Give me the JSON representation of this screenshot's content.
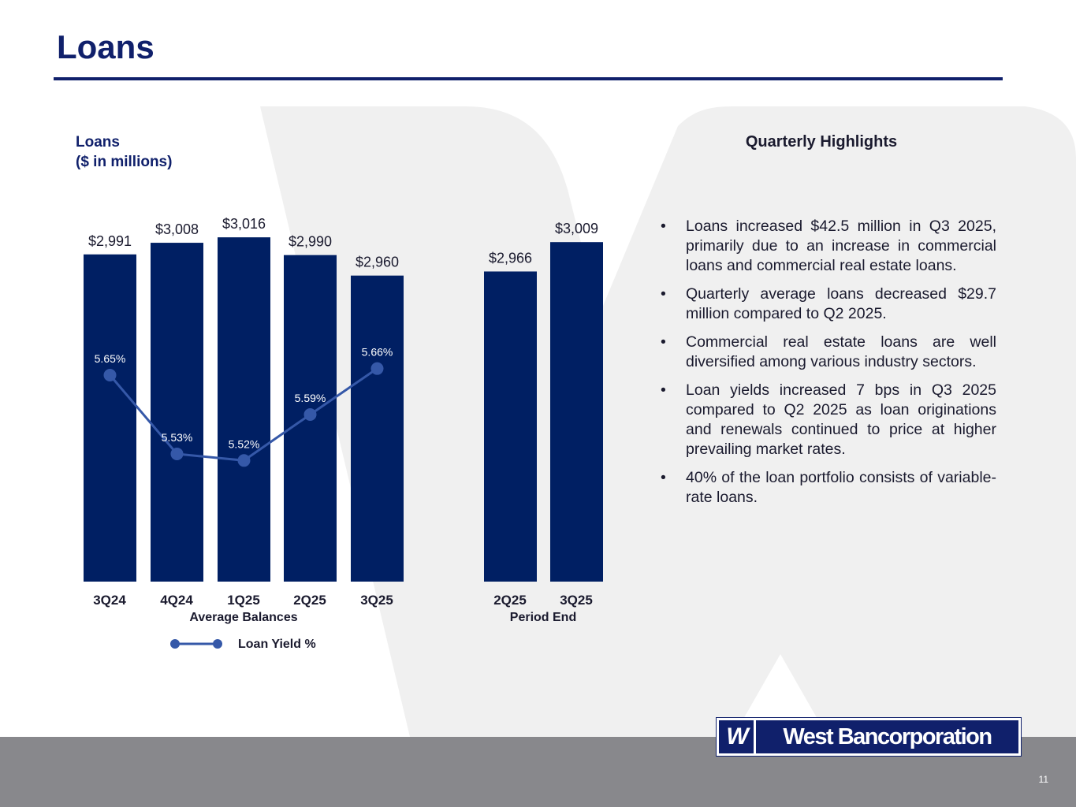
{
  "slide": {
    "title": "Loans",
    "page_number": "11"
  },
  "chart_data": {
    "type": "bar",
    "title_lines": [
      "Loans",
      "($ in millions)"
    ],
    "unit": "$ in millions",
    "groups": [
      {
        "name": "Average Balances",
        "categories": [
          "3Q24",
          "4Q24",
          "1Q25",
          "2Q25",
          "3Q25"
        ],
        "values": [
          2991,
          3008,
          3016,
          2990,
          2960
        ],
        "value_labels": [
          "$2,991",
          "$3,008",
          "$3,016",
          "$2,990",
          "$2,960"
        ],
        "line_series": {
          "name": "Loan Yield %",
          "values": [
            5.65,
            5.53,
            5.52,
            5.59,
            5.66
          ],
          "labels": [
            "5.65%",
            "5.53%",
            "5.52%",
            "5.59%",
            "5.66%"
          ]
        }
      },
      {
        "name": "Period End",
        "categories": [
          "2Q25",
          "3Q25"
        ],
        "values": [
          2966,
          3009
        ],
        "value_labels": [
          "$2,966",
          "$3,009"
        ]
      }
    ],
    "legend": [
      {
        "label": "Loan Yield %",
        "marker": "line-with-dots",
        "position": "bottom"
      }
    ],
    "colors": {
      "bar": "#001f63",
      "line": "#3558a8",
      "text": "#10206b"
    }
  },
  "highlights": {
    "title": "Quarterly Highlights",
    "bullet_char": "•",
    "items": [
      "Loans increased $42.5 million in Q3 2025, primarily due to an increase in commercial loans and commercial real estate loans.",
      "Quarterly average loans decreased $29.7 million compared to Q2 2025.",
      "Commercial real estate loans are well diversified among various industry sectors.",
      "Loan yields increased 7 bps in Q3 2025 compared to Q2 2025 as loan originations and renewals continued to price at higher prevailing market rates.",
      "40% of the loan portfolio consists of variable-rate loans."
    ]
  },
  "footer": {
    "logo_mark": "W",
    "logo_text": "West Bancorporation"
  }
}
